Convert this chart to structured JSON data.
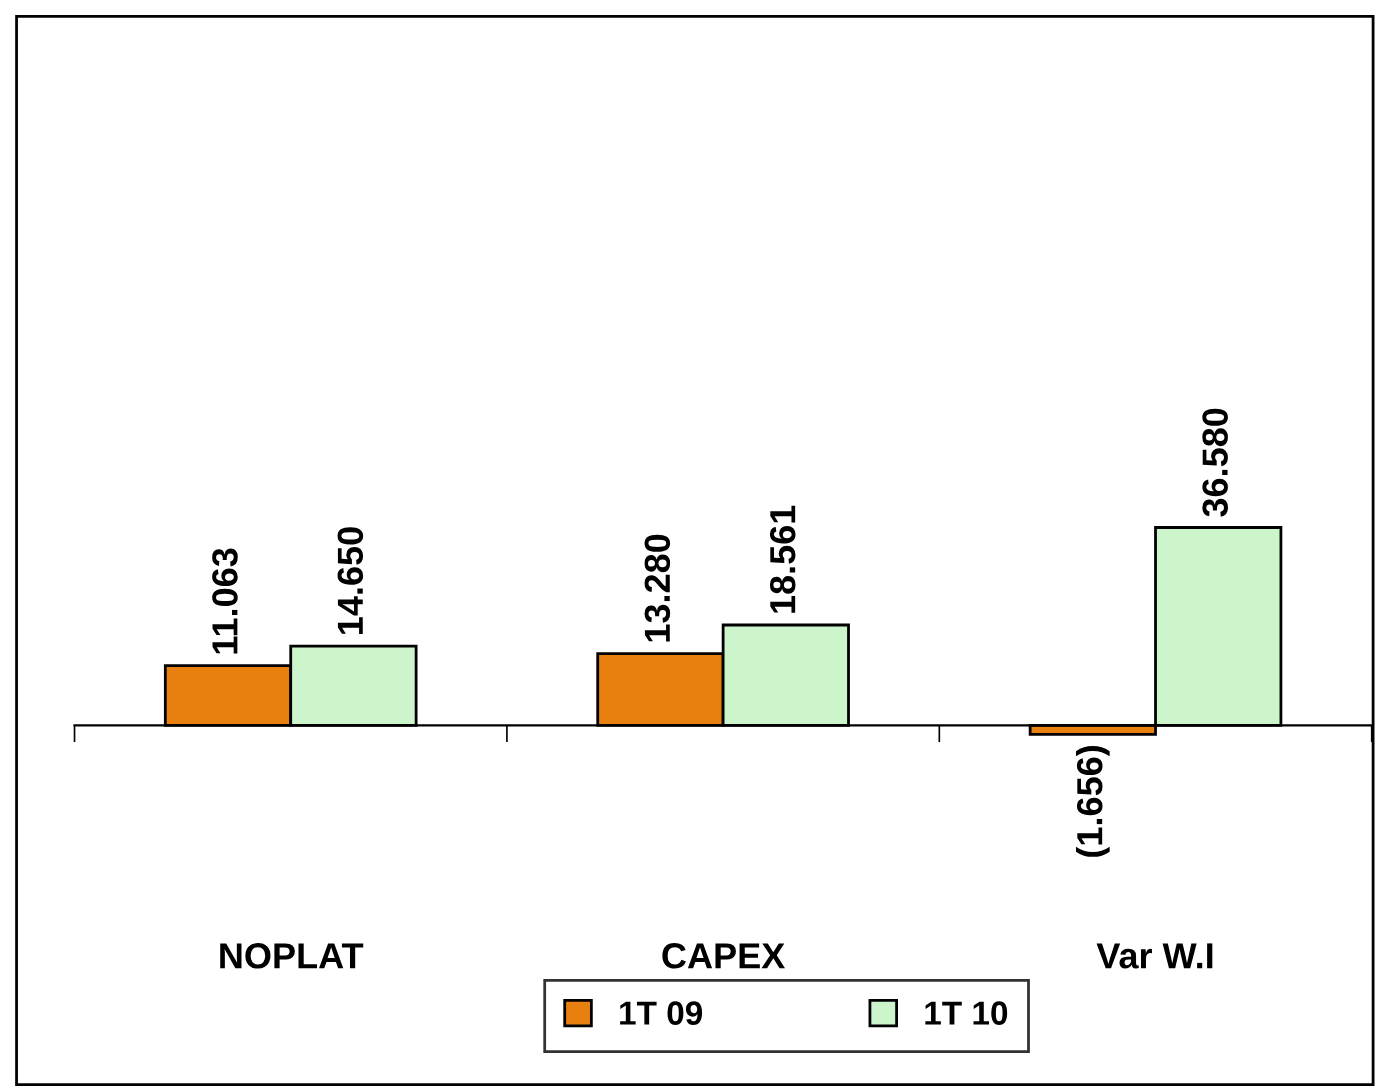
{
  "chart_data": {
    "type": "bar",
    "categories": [
      "NOPLAT",
      "CAPEX",
      "Var W.I"
    ],
    "series": [
      {
        "name": "1T 09",
        "color": "#e8800f",
        "values": [
          11063,
          13280,
          -1656
        ],
        "value_labels": [
          "11.063",
          "13.280",
          "(1.656)"
        ]
      },
      {
        "name": "1T 10",
        "color": "#ccf5cc",
        "values": [
          14650,
          18561,
          36580
        ],
        "value_labels": [
          "14.650",
          "18.561",
          "36.580"
        ]
      }
    ],
    "legend": "bottom",
    "grid": false
  }
}
